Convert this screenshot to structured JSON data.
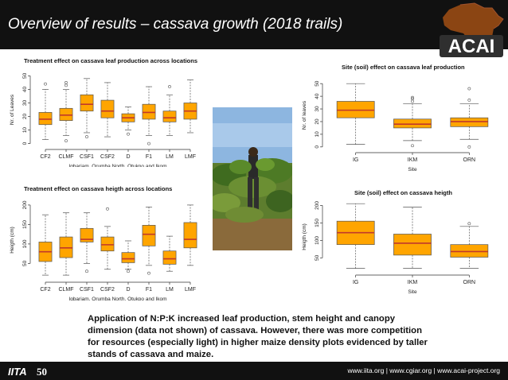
{
  "slide": {
    "title": "Overview of results – cassava growth (2018 trails)",
    "logo_text": "ACAI",
    "summary": "Application of N:P:K increased leaf production, stem height and canopy dimension (data not shown) of cassava. However, there was more competition for resources (especially light) in higher maize density plots evidenced by taller stands of cassava and maize.",
    "footer_links": "www.iita.org | www.cgiar.org | www.acai-project.org",
    "iita_logo": "IITA",
    "anniversary_logo": "50"
  },
  "colors": {
    "box_fill": "#FFA500",
    "median": "#C0392B",
    "outline": "#555555",
    "header_bg": "#111111"
  },
  "icons": [
    "africa-map-icon",
    "iita-logo-icon",
    "anniversary-logo-icon",
    "cassava-field-photo"
  ],
  "chart_data": [
    {
      "type": "boxplot",
      "title": "Treatment effect on cassava leaf production across locations",
      "xlabel": "Igbariam, Orumba North, Otukpo and Ikom",
      "ylabel": "Nr. of Leaves",
      "ylim": [
        -2,
        52
      ],
      "yticks": [
        0,
        10,
        20,
        30,
        40,
        50
      ],
      "categories": [
        "CF2",
        "CLMF",
        "CSF1",
        "CSF2",
        "D",
        "F1",
        "LM",
        "LMF"
      ],
      "boxes": [
        {
          "min": 3,
          "q1": 14,
          "median": 18,
          "q3": 23,
          "max": 40,
          "outliers": [
            44
          ]
        },
        {
          "min": 6,
          "q1": 17,
          "median": 21,
          "q3": 26,
          "max": 40,
          "outliers": [
            45,
            43,
            2
          ]
        },
        {
          "min": 8,
          "q1": 24,
          "median": 29,
          "q3": 36,
          "max": 48,
          "outliers": [
            5
          ]
        },
        {
          "min": 5,
          "q1": 19,
          "median": 24,
          "q3": 32,
          "max": 45,
          "outliers": []
        },
        {
          "min": 10,
          "q1": 16,
          "median": 19,
          "q3": 22,
          "max": 27,
          "outliers": [
            7
          ]
        },
        {
          "min": 6,
          "q1": 18,
          "median": 23,
          "q3": 29,
          "max": 42,
          "outliers": [
            0
          ]
        },
        {
          "min": 6,
          "q1": 16,
          "median": 19,
          "q3": 24,
          "max": 36,
          "outliers": [
            42
          ]
        },
        {
          "min": 8,
          "q1": 18,
          "median": 24,
          "q3": 30,
          "max": 47,
          "outliers": []
        }
      ]
    },
    {
      "type": "boxplot",
      "title": "Treatment effect on cassava heigth across locations",
      "xlabel": "Igbariam, Orumba North, Otukpo and Ikom",
      "ylabel": "Heigth (cm)",
      "ylim": [
        10,
        210
      ],
      "yticks": [
        50,
        100,
        150,
        200
      ],
      "categories": [
        "CF2",
        "CLMF",
        "CSF1",
        "CSF2",
        "D",
        "F1",
        "LM",
        "LMF"
      ],
      "boxes": [
        {
          "min": 20,
          "q1": 55,
          "median": 80,
          "q3": 105,
          "max": 175,
          "outliers": []
        },
        {
          "min": 20,
          "q1": 65,
          "median": 90,
          "q3": 118,
          "max": 180,
          "outliers": []
        },
        {
          "min": 50,
          "q1": 105,
          "median": 112,
          "q3": 140,
          "max": 180,
          "outliers": [
            30
          ]
        },
        {
          "min": 35,
          "q1": 82,
          "median": 98,
          "q3": 118,
          "max": 145,
          "outliers": [
            190
          ]
        },
        {
          "min": 35,
          "q1": 52,
          "median": 62,
          "q3": 78,
          "max": 108,
          "outliers": [
            30
          ]
        },
        {
          "min": 45,
          "q1": 95,
          "median": 125,
          "q3": 148,
          "max": 195,
          "outliers": [
            25
          ]
        },
        {
          "min": 30,
          "q1": 48,
          "median": 62,
          "q3": 82,
          "max": 120,
          "outliers": []
        },
        {
          "min": 45,
          "q1": 90,
          "median": 112,
          "q3": 155,
          "max": 200,
          "outliers": []
        }
      ]
    },
    {
      "type": "boxplot",
      "title": "Site (soil) effect on cassava leaf production",
      "xlabel": "Site",
      "ylabel": "Nr. of leaves",
      "ylim": [
        -2,
        52
      ],
      "yticks": [
        0,
        10,
        20,
        30,
        40,
        50
      ],
      "categories": [
        "IG",
        "IKM",
        "ORN"
      ],
      "boxes": [
        {
          "min": 2,
          "q1": 23,
          "median": 29,
          "q3": 36,
          "max": 50,
          "outliers": []
        },
        {
          "min": 5,
          "q1": 15,
          "median": 18,
          "q3": 22,
          "max": 34,
          "outliers": [
            36,
            38,
            39,
            1
          ]
        },
        {
          "min": 6,
          "q1": 16,
          "median": 20,
          "q3": 23,
          "max": 34,
          "outliers": [
            46,
            37,
            0
          ]
        }
      ]
    },
    {
      "type": "boxplot",
      "title": "Site (soil) effect on cassava heigth",
      "xlabel": "Site",
      "ylabel": "Heigth (cm)",
      "ylim": [
        10,
        210
      ],
      "yticks": [
        50,
        100,
        150,
        200
      ],
      "categories": [
        "IG",
        "IKM",
        "ORN"
      ],
      "boxes": [
        {
          "min": 20,
          "q1": 88,
          "median": 122,
          "q3": 155,
          "max": 205,
          "outliers": []
        },
        {
          "min": 20,
          "q1": 58,
          "median": 92,
          "q3": 118,
          "max": 195,
          "outliers": []
        },
        {
          "min": 20,
          "q1": 52,
          "median": 68,
          "q3": 88,
          "max": 140,
          "outliers": [
            148
          ]
        }
      ]
    }
  ]
}
